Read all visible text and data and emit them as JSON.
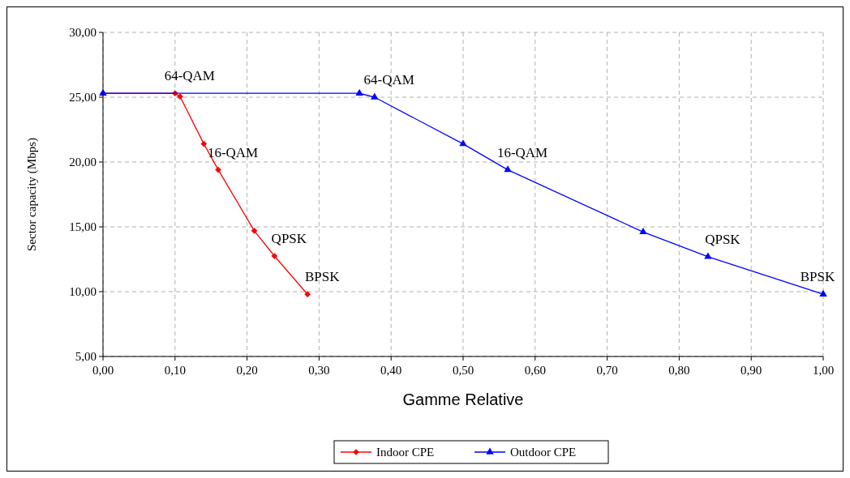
{
  "chart_data": {
    "type": "line",
    "xlabel": "Gamme Relative",
    "ylabel": "Sector capacity (Mbps)",
    "xlim": [
      0,
      1
    ],
    "ylim": [
      5,
      30
    ],
    "xticks": [
      {
        "value": 0,
        "label": "0,00"
      },
      {
        "value": 0.1,
        "label": "0,10"
      },
      {
        "value": 0.2,
        "label": "0,20"
      },
      {
        "value": 0.3,
        "label": "0,30"
      },
      {
        "value": 0.4,
        "label": "0,40"
      },
      {
        "value": 0.5,
        "label": "0,50"
      },
      {
        "value": 0.6,
        "label": "0,60"
      },
      {
        "value": 0.7,
        "label": "0,70"
      },
      {
        "value": 0.8,
        "label": "0,80"
      },
      {
        "value": 0.9,
        "label": "0,90"
      },
      {
        "value": 1,
        "label": "1,00"
      }
    ],
    "yticks": [
      {
        "value": 5,
        "label": "5,00"
      },
      {
        "value": 10,
        "label": "10,00"
      },
      {
        "value": 15,
        "label": "15,00"
      },
      {
        "value": 20,
        "label": "20,00"
      },
      {
        "value": 25,
        "label": "25,00"
      },
      {
        "value": 30,
        "label": "30,00"
      }
    ],
    "grid": true,
    "legend": "bottom",
    "line_style": "solid",
    "series": [
      {
        "name": "Indoor CPE",
        "color": "#ff0000",
        "marker": "diamond",
        "x": [
          0,
          0.1,
          0.107,
          0.14,
          0.16,
          0.21,
          0.238,
          0.284
        ],
        "values": [
          25.3,
          25.3,
          25.05,
          21.4,
          19.4,
          14.7,
          12.75,
          9.8
        ]
      },
      {
        "name": "Outdoor CPE",
        "color": "#0000ff",
        "marker": "triangle",
        "x": [
          0,
          0.356,
          0.377,
          0.5,
          0.562,
          0.75,
          0.84,
          1.0
        ],
        "values": [
          25.3,
          25.3,
          25.0,
          21.4,
          19.4,
          14.6,
          12.7,
          9.8
        ]
      }
    ],
    "annotations": [
      {
        "text": "64-QAM",
        "x": 0.1,
        "y": 25.3
      },
      {
        "text": "64-QAM",
        "x": 0.377,
        "y": 25.0
      },
      {
        "text": "16-QAM",
        "x": 0.16,
        "y": 19.4
      },
      {
        "text": "16-QAM",
        "x": 0.562,
        "y": 19.4
      },
      {
        "text": "QPSK",
        "x": 0.238,
        "y": 12.75
      },
      {
        "text": "QPSK",
        "x": 0.84,
        "y": 12.7
      },
      {
        "text": "BPSK",
        "x": 0.284,
        "y": 9.8
      },
      {
        "text": "BPSK",
        "x": 1.0,
        "y": 9.8
      }
    ]
  }
}
